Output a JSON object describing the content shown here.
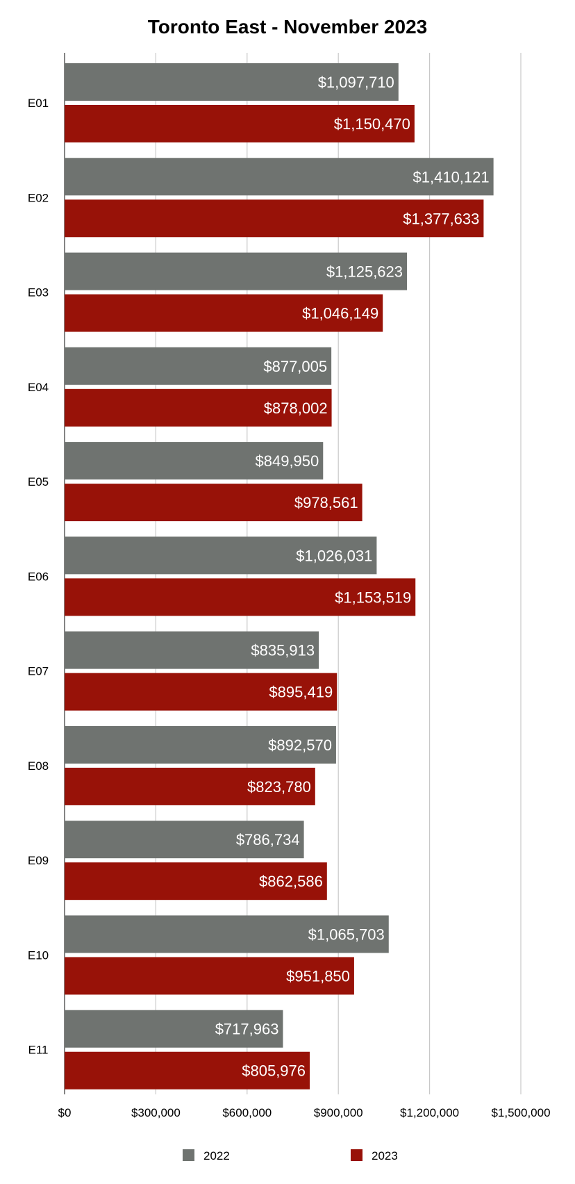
{
  "chart_data": {
    "type": "bar",
    "orientation": "horizontal",
    "title": "Toronto East - November 2023",
    "xlabel": "",
    "ylabel": "",
    "categories": [
      "E01",
      "E02",
      "E03",
      "E04",
      "E05",
      "E06",
      "E07",
      "E08",
      "E09",
      "E10",
      "E11"
    ],
    "series": [
      {
        "name": "2022",
        "color": "#6f7370",
        "values": [
          1097710,
          1410121,
          1125623,
          877005,
          849950,
          1026031,
          835913,
          892570,
          786734,
          1065703,
          717963
        ],
        "labels": [
          "$1,097,710",
          "$1,410,121",
          "$1,125,623",
          "$877,005",
          "$849,950",
          "$1,026,031",
          "$835,913",
          "$892,570",
          "$786,734",
          "$1,065,703",
          "$717,963"
        ]
      },
      {
        "name": "2023",
        "color": "#981208",
        "values": [
          1150470,
          1377633,
          1046149,
          878002,
          978561,
          1153519,
          895419,
          823780,
          862586,
          951850,
          805976
        ],
        "labels": [
          "$1,150,470",
          "$1,377,633",
          "$1,046,149",
          "$878,002",
          "$978,561",
          "$1,153,519",
          "$895,419",
          "$823,780",
          "$862,586",
          "$951,850",
          "$805,976"
        ]
      }
    ],
    "xlim": [
      0,
      1500000
    ],
    "x_ticks": [
      0,
      300000,
      600000,
      900000,
      1200000,
      1500000
    ],
    "x_tick_labels": [
      "$0",
      "$300,000",
      "$600,000",
      "$900,000",
      "$1,200,000",
      "$1,500,000"
    ],
    "grid": true,
    "legend_position": "bottom"
  }
}
